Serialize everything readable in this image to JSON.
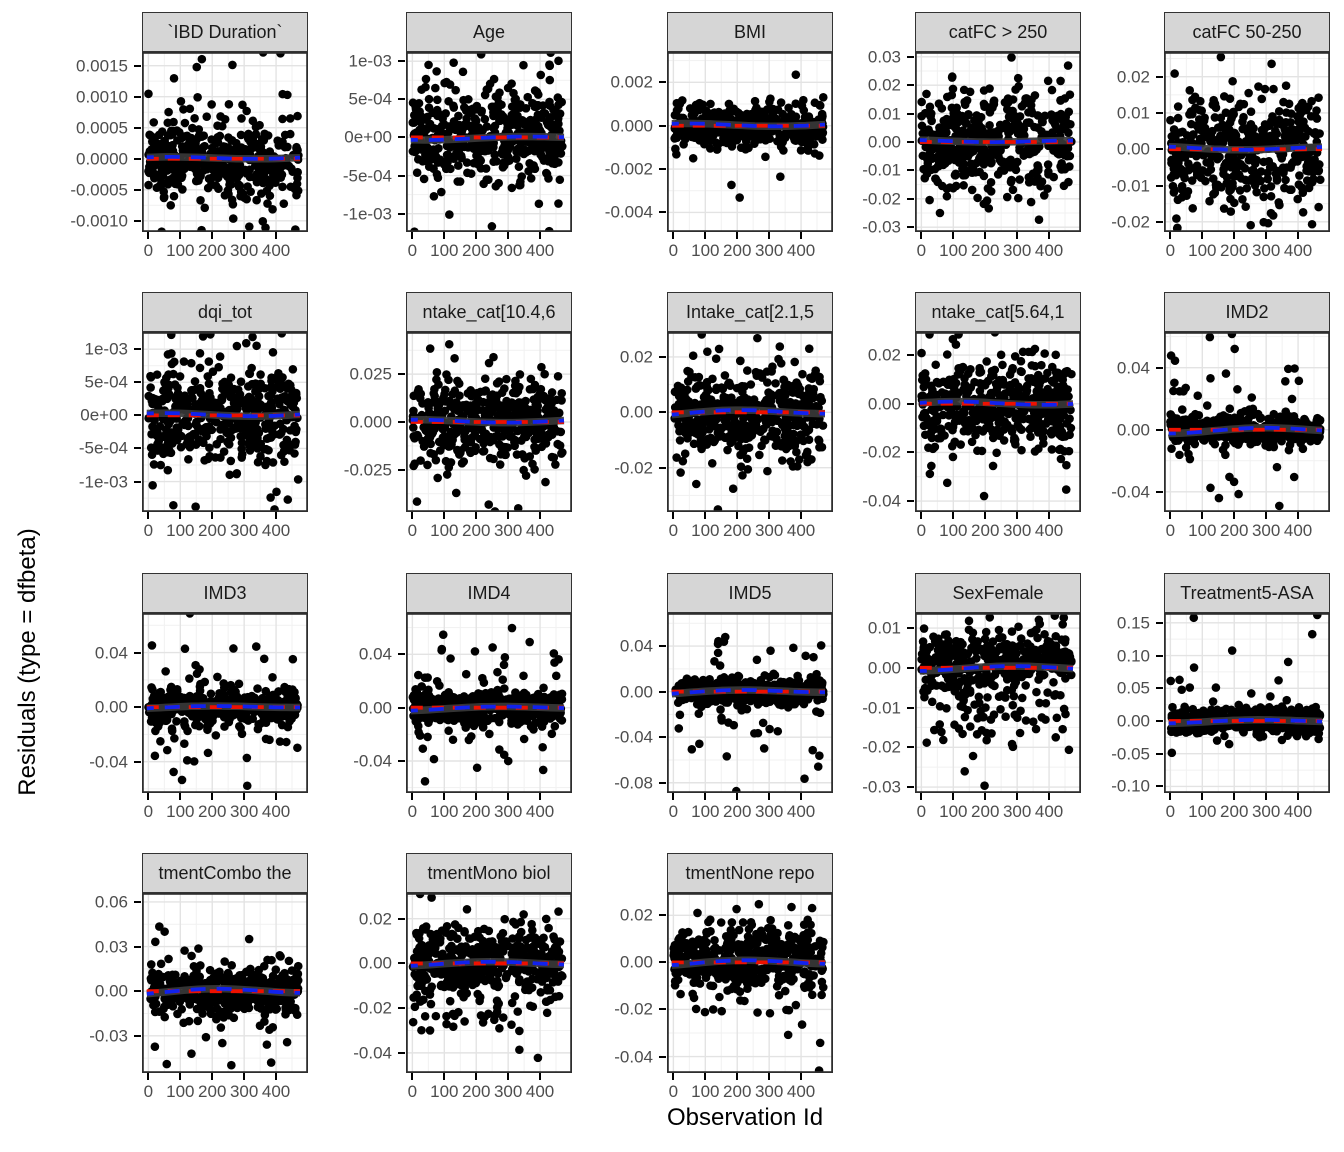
{
  "chart_data": {
    "type": "scatter",
    "title": "",
    "y_label": "Residuals (type = dfbeta)",
    "x_label": "Observation Id",
    "layout_hint": {
      "facet_rows": 4,
      "facet_cols": 5,
      "grid": "on",
      "legend": "none"
    },
    "x": {
      "ticks": [
        0,
        100,
        200,
        300,
        400
      ],
      "tick_labels": [
        "0",
        "100",
        "200",
        "300",
        "400"
      ],
      "domain": [
        -20,
        500
      ],
      "data_range": [
        0,
        470
      ]
    },
    "style": {
      "point_color": "#000000",
      "ribbon_color": "#383838",
      "reference_line_color": "#ee1100",
      "smooth_line_color": "#1122ee",
      "strip_bg": "#d6d6d6",
      "panel_bg": "#ffffff",
      "panel_border": "#2e2e2e",
      "grid_major": "#e3e3e3",
      "grid_minor": "#f1f1f1",
      "tick_label_color": "#4d4d4d"
    },
    "panels": [
      {
        "title": "`IBD Duration`",
        "ylim": [
          -0.00118,
          0.00172
        ],
        "yticks": [
          0.0015,
          0.001,
          0.0005,
          0,
          -0.0005,
          -0.001
        ],
        "ytick_labels": [
          "0.0015",
          "0.0010",
          "0.0005",
          "0.0000",
          "-0.0005",
          "-0.0010"
        ],
        "points": {
          "n": 460,
          "center": 0,
          "sd": 0.00032,
          "tail_frac": 0.12,
          "tail_sd": 0.0007,
          "tail_shift": 0
        },
        "seed": 7
      },
      {
        "title": "Age",
        "ylim": [
          -0.00124,
          0.00112
        ],
        "yticks": [
          0.001,
          0.0005,
          0,
          -0.0005,
          -0.001
        ],
        "ytick_labels": [
          "1e-03",
          "5e-04",
          "0e+00",
          "-5e-04",
          "-1e-03"
        ],
        "points": {
          "n": 460,
          "center": 0,
          "sd": 0.0003,
          "tail_frac": 0.15,
          "tail_sd": 0.0006,
          "tail_shift": 0
        },
        "seed": 18
      },
      {
        "title": "BMI",
        "ylim": [
          -0.0049,
          0.0034
        ],
        "yticks": [
          0.002,
          0,
          -0.002,
          -0.004
        ],
        "ytick_labels": [
          "0.002",
          "0.000",
          "-0.002",
          "-0.004"
        ],
        "points": {
          "n": 460,
          "center": 0,
          "sd": 0.00045,
          "tail_frac": 0.08,
          "tail_sd": 0.0013,
          "tail_shift": -0.0002
        },
        "seed": 29
      },
      {
        "title": "catFC > 250",
        "ylim": [
          -0.0317,
          0.0317
        ],
        "yticks": [
          0.03,
          0.02,
          0.01,
          0,
          -0.01,
          -0.02,
          -0.03
        ],
        "ytick_labels": [
          "0.03",
          "0.02",
          "0.01",
          "0.00",
          "-0.01",
          "-0.02",
          "-0.03"
        ],
        "points": {
          "n": 450,
          "center": 0.001,
          "sd": 0.0085,
          "tail_frac": 0.15,
          "tail_sd": 0.014,
          "tail_shift": -0.002
        },
        "seed": 40
      },
      {
        "title": "catFC 50-250",
        "ylim": [
          -0.0228,
          0.0268
        ],
        "yticks": [
          0.02,
          0.01,
          0,
          -0.01,
          -0.02
        ],
        "ytick_labels": [
          "0.02",
          "0.01",
          "0.00",
          "-0.01",
          "-0.02"
        ],
        "points": {
          "n": 450,
          "center": 0,
          "sd": 0.0078,
          "tail_frac": 0.1,
          "tail_sd": 0.012,
          "tail_shift": 0
        },
        "seed": 51
      },
      {
        "title": "dqi_tot",
        "ylim": [
          -0.00146,
          0.00126
        ],
        "yticks": [
          0.001,
          0.0005,
          0,
          -0.0005,
          -0.001
        ],
        "ytick_labels": [
          "1e-03",
          "5e-04",
          "0e+00",
          "-5e-04",
          "-1e-03"
        ],
        "points": {
          "n": 460,
          "center": 0,
          "sd": 0.00038,
          "tail_frac": 0.12,
          "tail_sd": 0.0008,
          "tail_shift": 0
        },
        "seed": 62
      },
      {
        "title": "ntake_cat[10.4,6",
        "ylim": [
          -0.047,
          0.047
        ],
        "yticks": [
          0.025,
          0,
          -0.025
        ],
        "ytick_labels": [
          "0.025",
          "0.000",
          "-0.025"
        ],
        "points": {
          "n": 450,
          "center": 0,
          "sd": 0.011,
          "tail_frac": 0.1,
          "tail_sd": 0.02,
          "tail_shift": 0
        },
        "seed": 73
      },
      {
        "title": "Intake_cat[2.1,5",
        "ylim": [
          -0.036,
          0.029
        ],
        "yticks": [
          0.02,
          0,
          -0.02
        ],
        "ytick_labels": [
          "0.02",
          "0.00",
          "-0.02"
        ],
        "points": {
          "n": 450,
          "center": 0,
          "sd": 0.008,
          "tail_frac": 0.15,
          "tail_sd": 0.014,
          "tail_shift": -0.004
        },
        "seed": 84
      },
      {
        "title": "ntake_cat[5.64,1",
        "ylim": [
          -0.0445,
          0.0295
        ],
        "yticks": [
          0.02,
          0,
          -0.02,
          -0.04
        ],
        "ytick_labels": [
          "0.02",
          "0.00",
          "-0.02",
          "-0.04"
        ],
        "points": {
          "n": 450,
          "center": 0,
          "sd": 0.009,
          "tail_frac": 0.15,
          "tail_sd": 0.015,
          "tail_shift": -0.004
        },
        "seed": 95
      },
      {
        "title": "IMD2",
        "ylim": [
          -0.053,
          0.063
        ],
        "yticks": [
          0.04,
          0,
          -0.04
        ],
        "ytick_labels": [
          "0.04",
          "0.00",
          "-0.04"
        ],
        "points": {
          "n": 460,
          "center": 0,
          "sd": 0.005,
          "tail_frac": 0.12,
          "tail_sd": 0.025,
          "tail_shift": 0.005
        },
        "seed": 106
      },
      {
        "title": "IMD3",
        "ylim": [
          -0.063,
          0.069
        ],
        "yticks": [
          0.04,
          0,
          -0.04
        ],
        "ytick_labels": [
          "0.04",
          "0.00",
          "-0.04"
        ],
        "points": {
          "n": 460,
          "center": 0,
          "sd": 0.006,
          "tail_frac": 0.15,
          "tail_sd": 0.025,
          "tail_shift": 0.003
        },
        "seed": 117
      },
      {
        "title": "IMD4",
        "ylim": [
          -0.064,
          0.071
        ],
        "yticks": [
          0.04,
          0,
          -0.04
        ],
        "ytick_labels": [
          "0.04",
          "0.00",
          "-0.04"
        ],
        "points": {
          "n": 460,
          "center": 0,
          "sd": 0.006,
          "tail_frac": 0.15,
          "tail_sd": 0.027,
          "tail_shift": 0.003
        },
        "seed": 128
      },
      {
        "title": "IMD5",
        "ylim": [
          -0.089,
          0.069
        ],
        "yticks": [
          0.04,
          0,
          -0.04,
          -0.08
        ],
        "ytick_labels": [
          "0.04",
          "0.00",
          "-0.04",
          "-0.08"
        ],
        "points": {
          "n": 460,
          "center": 0,
          "sd": 0.006,
          "tail_frac": 0.15,
          "tail_sd": 0.028,
          "tail_shift": -0.005
        },
        "seed": 139
      },
      {
        "title": "SexFemale",
        "ylim": [
          -0.0315,
          0.0138
        ],
        "yticks": [
          0.01,
          0,
          -0.01,
          -0.02,
          -0.03
        ],
        "ytick_labels": [
          "0.01",
          "0.00",
          "-0.01",
          "-0.02",
          "-0.03"
        ],
        "points": {
          "n": 460,
          "center": 0.002,
          "sd": 0.0035,
          "tail_frac": 0.3,
          "tail_sd": 0.009,
          "tail_shift": -0.01
        },
        "seed": 150
      },
      {
        "title": "Treatment5-ASA",
        "ylim": [
          -0.11,
          0.165
        ],
        "yticks": [
          0.15,
          0.1,
          0.05,
          0,
          -0.05,
          -0.1
        ],
        "ytick_labels": [
          "0.15",
          "0.10",
          "0.05",
          "0.00",
          "-0.05",
          "-0.10"
        ],
        "points": {
          "n": 460,
          "center": 0,
          "sd": 0.01,
          "tail_frac": 0.04,
          "tail_sd": 0.07,
          "tail_shift": 0.02
        },
        "seed": 161
      },
      {
        "title": "tmentCombo the",
        "ylim": [
          -0.055,
          0.066
        ],
        "yticks": [
          0.06,
          0.03,
          0,
          -0.03
        ],
        "ytick_labels": [
          "0.06",
          "0.03",
          "0.00",
          "-0.03"
        ],
        "points": {
          "n": 450,
          "center": 0,
          "sd": 0.007,
          "tail_frac": 0.2,
          "tail_sd": 0.02,
          "tail_shift": -0.003
        },
        "seed": 172
      },
      {
        "title": "tmentMono biol",
        "ylim": [
          -0.049,
          0.0315
        ],
        "yticks": [
          0.02,
          0,
          -0.02,
          -0.04
        ],
        "ytick_labels": [
          "0.02",
          "0.00",
          "-0.02",
          "-0.04"
        ],
        "points": {
          "n": 450,
          "center": 0,
          "sd": 0.009,
          "tail_frac": 0.15,
          "tail_sd": 0.016,
          "tail_shift": -0.006
        },
        "seed": 183
      },
      {
        "title": "tmentNone repo",
        "ylim": [
          -0.047,
          0.0295
        ],
        "yticks": [
          0.02,
          0,
          -0.02,
          -0.04
        ],
        "ytick_labels": [
          "0.02",
          "0.00",
          "-0.02",
          "-0.04"
        ],
        "points": {
          "n": 450,
          "center": 0.002,
          "sd": 0.006,
          "tail_frac": 0.15,
          "tail_sd": 0.013,
          "tail_shift": -0.006
        },
        "seed": 194
      }
    ]
  }
}
